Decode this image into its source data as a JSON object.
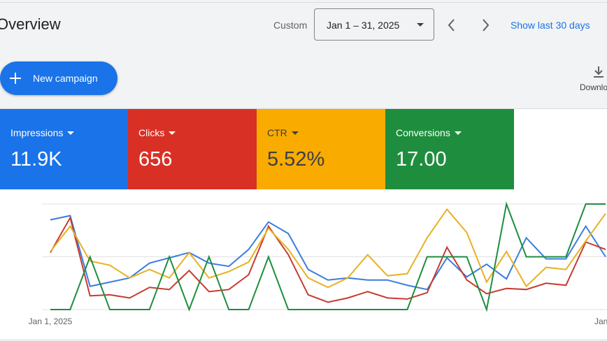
{
  "header": {
    "title": "Overview",
    "range_label": "Custom",
    "date_range": "Jan 1 – 31, 2025",
    "show_last": "Show last 30 days",
    "new_campaign": "New campaign",
    "download": "Download"
  },
  "metrics": [
    {
      "label": "Impressions",
      "value": "11.9K"
    },
    {
      "label": "Clicks",
      "value": "656"
    },
    {
      "label": "CTR",
      "value": "5.52%"
    },
    {
      "label": "Conversions",
      "value": "17.00"
    }
  ],
  "chart_data": {
    "type": "line",
    "categories": [
      "Jan 1, 2025",
      null,
      null,
      null,
      null,
      null,
      null,
      null,
      null,
      null,
      null,
      null,
      null,
      null,
      null,
      null,
      null,
      null,
      null,
      null,
      null,
      null,
      null,
      null,
      null,
      null,
      null,
      null,
      "Jan"
    ],
    "ylim": [
      0,
      100
    ],
    "yticks": [
      0,
      50,
      100
    ],
    "grid": true,
    "series": [
      {
        "name": "Impressions",
        "color": "#3b7ddd",
        "values": [
          85,
          89,
          22,
          26,
          30,
          44,
          49,
          54,
          44,
          41,
          57,
          83,
          72,
          38,
          28,
          30,
          28,
          28,
          23,
          19,
          49,
          31,
          43,
          29,
          68,
          48,
          48,
          79,
          50
        ]
      },
      {
        "name": "Clicks",
        "color": "#c83a30",
        "values": [
          54,
          87,
          13,
          14,
          11,
          21,
          19,
          37,
          17,
          19,
          33,
          79,
          52,
          14,
          7,
          11,
          17,
          11,
          10,
          16,
          59,
          28,
          15,
          20,
          19,
          25,
          23,
          64,
          57
        ]
      },
      {
        "name": "CTR",
        "color": "#e6b224",
        "values": [
          55,
          79,
          46,
          42,
          30,
          38,
          30,
          54,
          30,
          36,
          45,
          77,
          57,
          30,
          21,
          30,
          52,
          32,
          34,
          68,
          95,
          73,
          26,
          55,
          22,
          40,
          38,
          65,
          91
        ]
      },
      {
        "name": "Conversions",
        "color": "#1e8e3e",
        "values": [
          0,
          0,
          50,
          0,
          0,
          0,
          50,
          0,
          50,
          0,
          0,
          50,
          0,
          0,
          0,
          0,
          0,
          0,
          0,
          50,
          50,
          50,
          0,
          100,
          50,
          50,
          50,
          100,
          100
        ]
      }
    ]
  }
}
